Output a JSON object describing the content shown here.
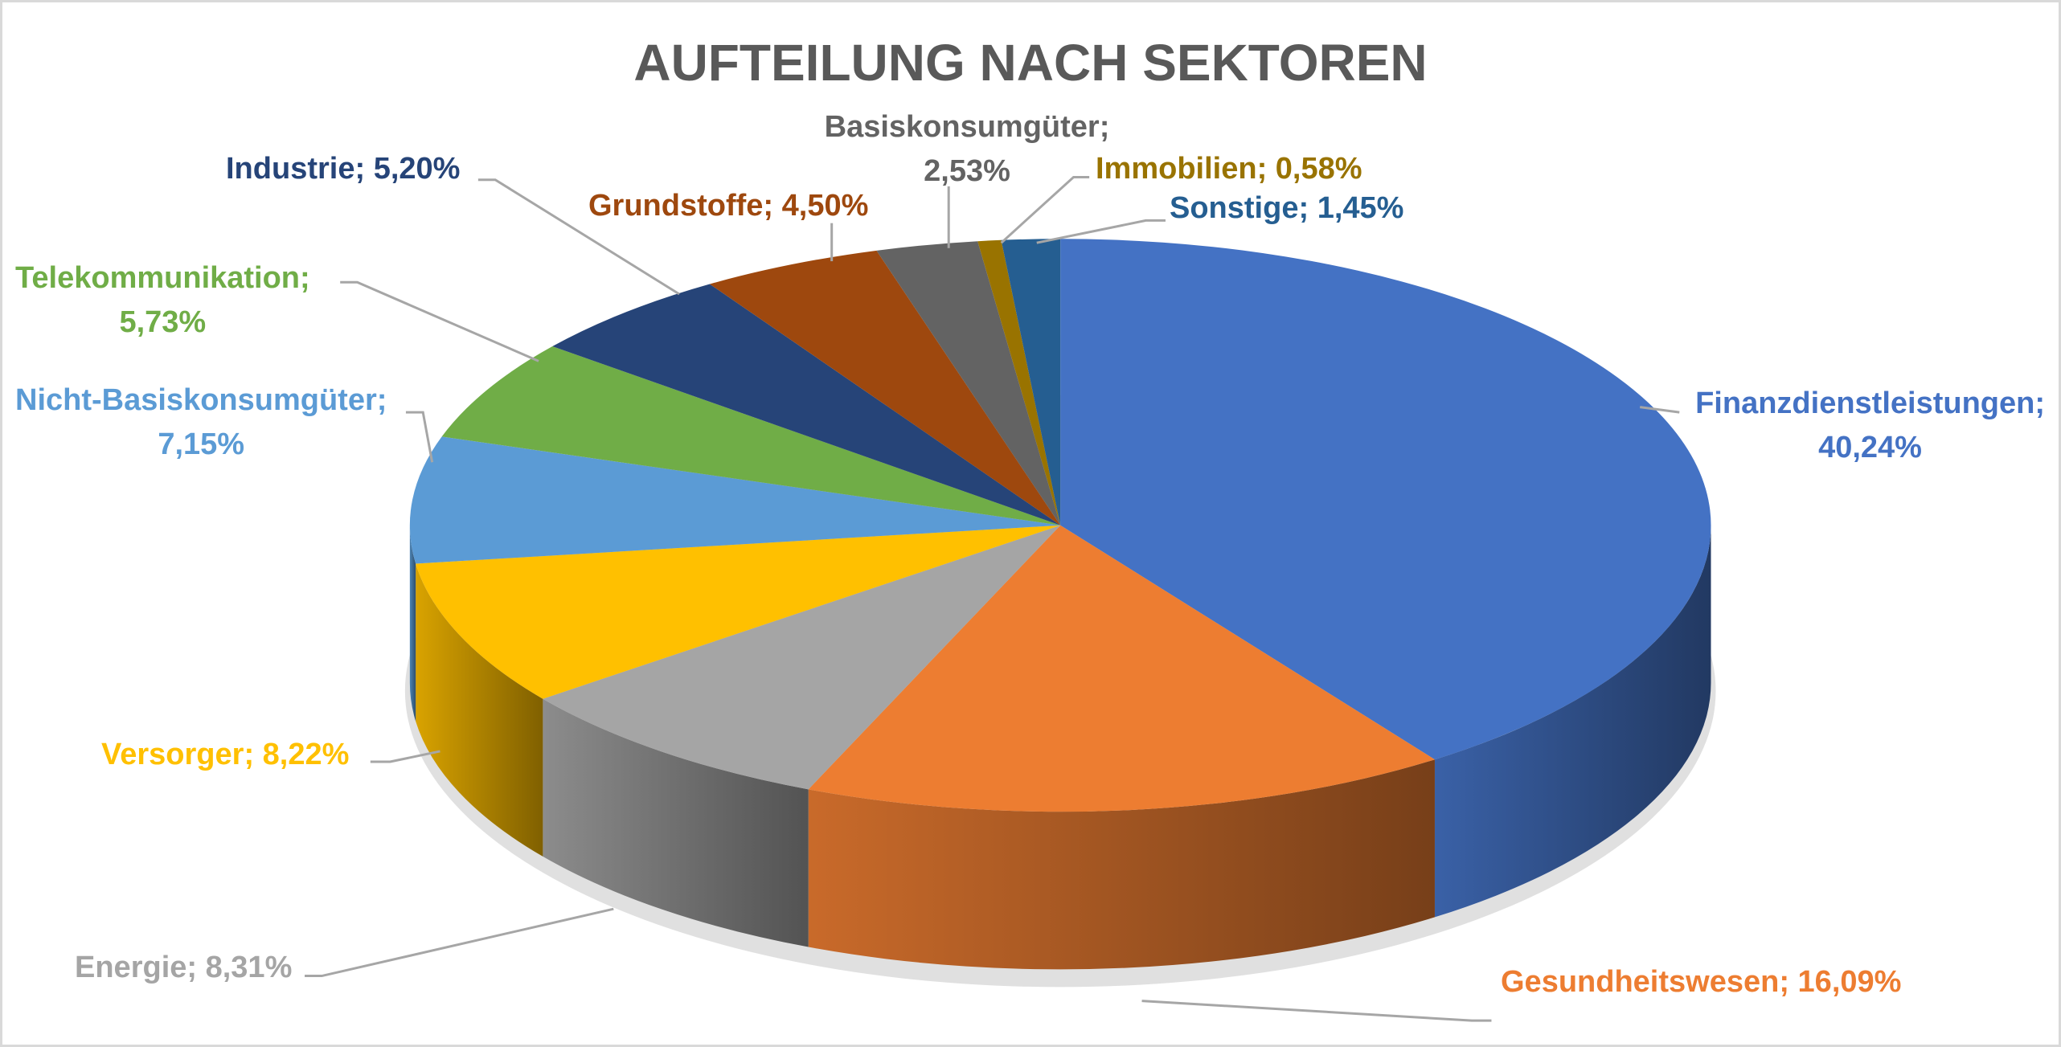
{
  "chart_data": {
    "type": "pie",
    "style": "3d",
    "title": "AUFTEILUNG NACH SEKTOREN",
    "slices": [
      {
        "label": "Finanzdienstleistungen",
        "value": 40.24,
        "text": "40,24%",
        "color": "#4472C4"
      },
      {
        "label": "Gesundheitswesen",
        "value": 16.09,
        "text": "16,09%",
        "color": "#ED7D31"
      },
      {
        "label": "Energie",
        "value": 8.31,
        "text": "8,31%",
        "color": "#A5A5A5"
      },
      {
        "label": "Versorger",
        "value": 8.22,
        "text": "8,22%",
        "color": "#FFC000"
      },
      {
        "label": "Nicht-Basiskonsumgüter",
        "value": 7.15,
        "text": "7,15%",
        "color": "#5B9BD5"
      },
      {
        "label": "Telekommunikation",
        "value": 5.73,
        "text": "5,73%",
        "color": "#70AD47"
      },
      {
        "label": "Industrie",
        "value": 5.2,
        "text": "5,20%",
        "color": "#264478"
      },
      {
        "label": "Grundstoffe",
        "value": 4.5,
        "text": "4,50%",
        "color": "#9E480E"
      },
      {
        "label": "Basiskonsumgüter",
        "value": 2.53,
        "text": "2,53%",
        "color": "#636363"
      },
      {
        "label": "Immobilien",
        "value": 0.58,
        "text": "0,58%",
        "color": "#997300"
      },
      {
        "label": "Sonstige",
        "value": 1.45,
        "text": "1,45%",
        "color": "#255E91"
      }
    ],
    "label_format": "{label}; {percent}",
    "legend": "none"
  }
}
